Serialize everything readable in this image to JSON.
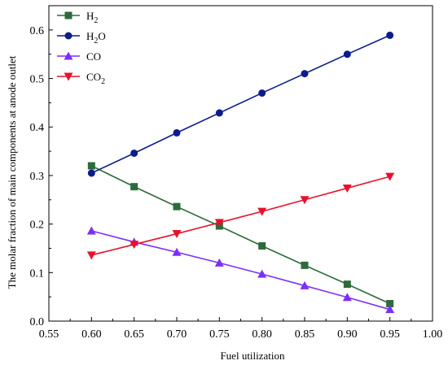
{
  "chart_data": {
    "type": "line",
    "title": "",
    "xlabel": "Fuel utilization",
    "ylabel": "The molar fraction of main components at anode outlet",
    "xlim": [
      0.55,
      1.0
    ],
    "ylim": [
      0.0,
      0.65
    ],
    "xticks": [
      "0.55",
      "0.60",
      "0.65",
      "0.70",
      "0.75",
      "0.80",
      "0.85",
      "0.90",
      "0.95",
      "1.00"
    ],
    "yticks": [
      "0.0",
      "0.1",
      "0.2",
      "0.3",
      "0.4",
      "0.5",
      "0.6"
    ],
    "grid": false,
    "legend_position": "top-left",
    "x": [
      0.6,
      0.65,
      0.7,
      0.75,
      0.8,
      0.85,
      0.9,
      0.95
    ],
    "series": [
      {
        "name_parts": [
          "H",
          "2",
          ""
        ],
        "color": "#2e6b3a",
        "marker": "square",
        "values": [
          0.32,
          0.277,
          0.236,
          0.196,
          0.155,
          0.115,
          0.076,
          0.036
        ]
      },
      {
        "name_parts": [
          "H",
          "2",
          "O"
        ],
        "color": "#0c1c8c",
        "marker": "circle",
        "values": [
          0.305,
          0.346,
          0.388,
          0.429,
          0.47,
          0.51,
          0.55,
          0.589
        ]
      },
      {
        "name_parts": [
          "CO",
          "",
          ""
        ],
        "color": "#7b2ff7",
        "marker": "triangle-up",
        "values": [
          0.186,
          0.163,
          0.142,
          0.12,
          0.097,
          0.073,
          0.049,
          0.024
        ]
      },
      {
        "name_parts": [
          "CO",
          "2",
          ""
        ],
        "color": "#e8112d",
        "marker": "triangle-down",
        "values": [
          0.136,
          0.158,
          0.18,
          0.203,
          0.226,
          0.25,
          0.274,
          0.298
        ]
      }
    ]
  }
}
